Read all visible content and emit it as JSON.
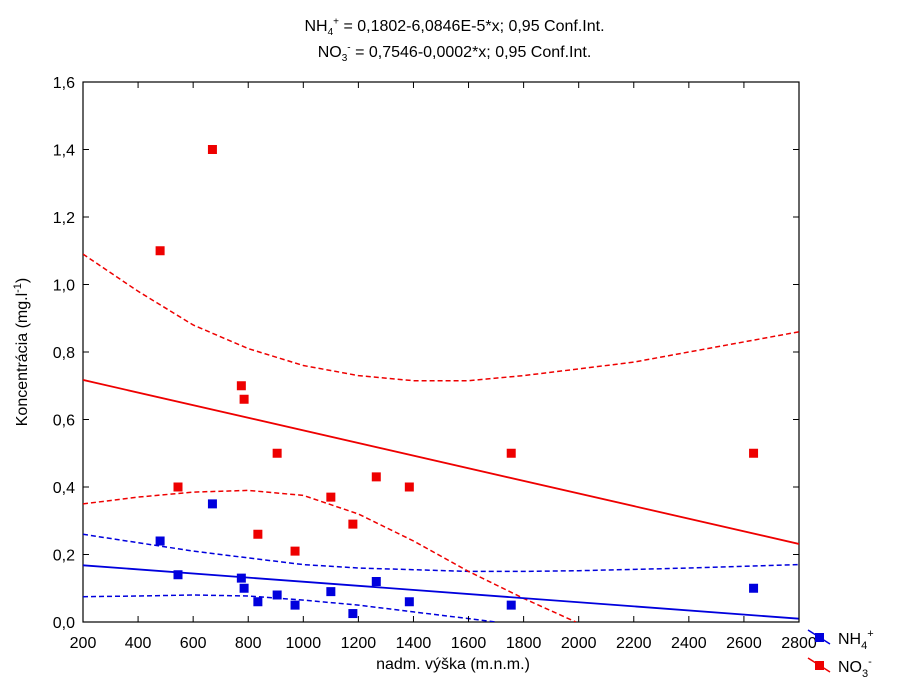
{
  "chart_data": {
    "type": "scatter",
    "title_lines": [
      {
        "species_base": "NH",
        "species_sub": "4",
        "species_sup": "+",
        "equation": " = 0,1802-6,0846E-5*x; 0,95 Conf.Int."
      },
      {
        "species_base": "NO",
        "species_sub": "3",
        "species_sup": "-",
        "equation": " = 0,7546-0,0002*x; 0,95 Conf.Int."
      }
    ],
    "xlabel": "nadm. výška (m.n.m.)",
    "ylabel": "Koncentrácia (mg.l",
    "ylabel_sup": "-1",
    "ylabel_end": ")",
    "xlim": [
      200,
      2800
    ],
    "ylim": [
      0,
      1.6
    ],
    "xticks": [
      "200",
      "400",
      "600",
      "800",
      "1000",
      "1200",
      "1400",
      "1600",
      "1800",
      "2000",
      "2200",
      "2400",
      "2600",
      "2800"
    ],
    "yticks": [
      "0,0",
      "0,2",
      "0,4",
      "0,6",
      "0,8",
      "1,0",
      "1,2",
      "1,4",
      "1,6"
    ],
    "grid": false,
    "legend_placement": "bottom-right",
    "series": [
      {
        "name_base": "NH",
        "name_sub": "4",
        "name_sup": "+",
        "color": "#0000dd",
        "points": [
          [
            480,
            0.24
          ],
          [
            545,
            0.14
          ],
          [
            670,
            0.35
          ],
          [
            775,
            0.13
          ],
          [
            785,
            0.1
          ],
          [
            835,
            0.06
          ],
          [
            905,
            0.08
          ],
          [
            970,
            0.05
          ],
          [
            1100,
            0.09
          ],
          [
            1180,
            0.025
          ],
          [
            1265,
            0.12
          ],
          [
            1385,
            0.06
          ],
          [
            1755,
            0.05
          ],
          [
            2635,
            0.1
          ]
        ],
        "fit": {
          "intercept": 0.1802,
          "slope": -6.0846e-05
        },
        "ci_upper": [
          [
            200,
            0.26
          ],
          [
            400,
            0.235
          ],
          [
            600,
            0.21
          ],
          [
            800,
            0.19
          ],
          [
            1000,
            0.17
          ],
          [
            1200,
            0.16
          ],
          [
            1400,
            0.155
          ],
          [
            1600,
            0.15
          ],
          [
            1800,
            0.15
          ],
          [
            2000,
            0.152
          ],
          [
            2200,
            0.156
          ],
          [
            2400,
            0.16
          ],
          [
            2600,
            0.165
          ],
          [
            2800,
            0.17
          ]
        ],
        "ci_lower": [
          [
            200,
            0.075
          ],
          [
            400,
            0.077
          ],
          [
            600,
            0.08
          ],
          [
            800,
            0.077
          ],
          [
            1000,
            0.065
          ],
          [
            1200,
            0.05
          ],
          [
            1400,
            0.03
          ],
          [
            1600,
            0.01
          ],
          [
            1700,
            0.0
          ]
        ]
      },
      {
        "name_base": "NO",
        "name_sub": "3",
        "name_sup": "-",
        "color": "#ee0000",
        "points": [
          [
            480,
            1.1
          ],
          [
            545,
            0.4
          ],
          [
            670,
            1.4
          ],
          [
            775,
            0.7
          ],
          [
            785,
            0.66
          ],
          [
            835,
            0.26
          ],
          [
            905,
            0.5
          ],
          [
            970,
            0.21
          ],
          [
            1100,
            0.37
          ],
          [
            1180,
            0.29
          ],
          [
            1265,
            0.43
          ],
          [
            1385,
            0.4
          ],
          [
            1755,
            0.5
          ],
          [
            2635,
            0.5
          ]
        ],
        "fit": {
          "intercept": 0.7546,
          "slope": -0.0001869
        },
        "ci_upper": [
          [
            200,
            1.09
          ],
          [
            400,
            0.98
          ],
          [
            600,
            0.88
          ],
          [
            800,
            0.81
          ],
          [
            1000,
            0.76
          ],
          [
            1200,
            0.73
          ],
          [
            1400,
            0.715
          ],
          [
            1600,
            0.715
          ],
          [
            1800,
            0.73
          ],
          [
            2000,
            0.75
          ],
          [
            2200,
            0.77
          ],
          [
            2400,
            0.8
          ],
          [
            2600,
            0.83
          ],
          [
            2800,
            0.86
          ]
        ],
        "ci_lower": [
          [
            200,
            0.35
          ],
          [
            400,
            0.37
          ],
          [
            600,
            0.385
          ],
          [
            800,
            0.39
          ],
          [
            1000,
            0.375
          ],
          [
            1200,
            0.32
          ],
          [
            1400,
            0.24
          ],
          [
            1600,
            0.15
          ],
          [
            1800,
            0.07
          ],
          [
            1990,
            0.0
          ]
        ]
      }
    ]
  }
}
